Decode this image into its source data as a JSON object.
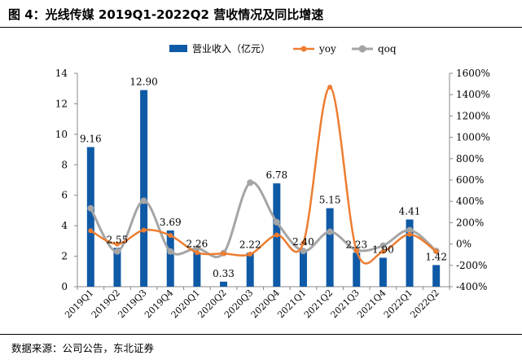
{
  "header": {
    "title": "图 4：光线传媒 2019Q1-2022Q2 营收情况及同比增速"
  },
  "footer": {
    "source": "数据来源：公司公告，东北证券"
  },
  "colors": {
    "bar": "#0f5aa6",
    "yoy": "#ed7d31",
    "qoq": "#a5a5a5"
  },
  "chart_data": {
    "type": "bar",
    "title": "光线传媒 2019Q1-2022Q2 营收情况及同比增速",
    "categories": [
      "2019Q1",
      "2019Q2",
      "2019Q3",
      "2019Q4",
      "2020Q1",
      "2020Q2",
      "2020Q3",
      "2020Q4",
      "2021Q1",
      "2021Q2",
      "2021Q3",
      "2021Q4",
      "2022Q1",
      "2022Q2"
    ],
    "series": [
      {
        "name": "营业收入（亿元）",
        "type": "bar",
        "axis": "left",
        "values": [
          9.16,
          2.55,
          12.9,
          3.69,
          2.26,
          0.33,
          2.22,
          6.78,
          2.4,
          5.15,
          2.23,
          1.9,
          4.41,
          1.42
        ],
        "labels": [
          "9.16",
          "2.55",
          "12.90",
          "3.69",
          "2.26",
          "0.33",
          "2.22",
          "6.78",
          "2.40",
          "5.15",
          "2.23",
          "1.90",
          "4.41",
          "1.42"
        ]
      },
      {
        "name": "yoy",
        "type": "line",
        "axis": "right",
        "values": [
          125,
          0,
          130,
          80,
          -80,
          -90,
          -95,
          85,
          10,
          1470,
          -60,
          -70,
          90,
          -70
        ]
      },
      {
        "name": "qoq",
        "type": "line",
        "axis": "right",
        "values": [
          335,
          -70,
          405,
          -70,
          -40,
          -85,
          575,
          205,
          -65,
          115,
          -57,
          -15,
          130,
          -65
        ]
      }
    ],
    "left_axis": {
      "min": 0,
      "max": 14,
      "ticks": [
        "0",
        "2",
        "4",
        "6",
        "8",
        "10",
        "12",
        "14"
      ]
    },
    "right_axis": {
      "min": -400,
      "max": 1600,
      "ticks": [
        "-400%",
        "-200%",
        "0%",
        "200%",
        "400%",
        "600%",
        "800%",
        "1000%",
        "1200%",
        "1400%",
        "1600%"
      ]
    },
    "legend": {
      "position": "top",
      "entries": [
        "营业收入（亿元）",
        "yoy",
        "qoq"
      ]
    },
    "grid": false
  }
}
